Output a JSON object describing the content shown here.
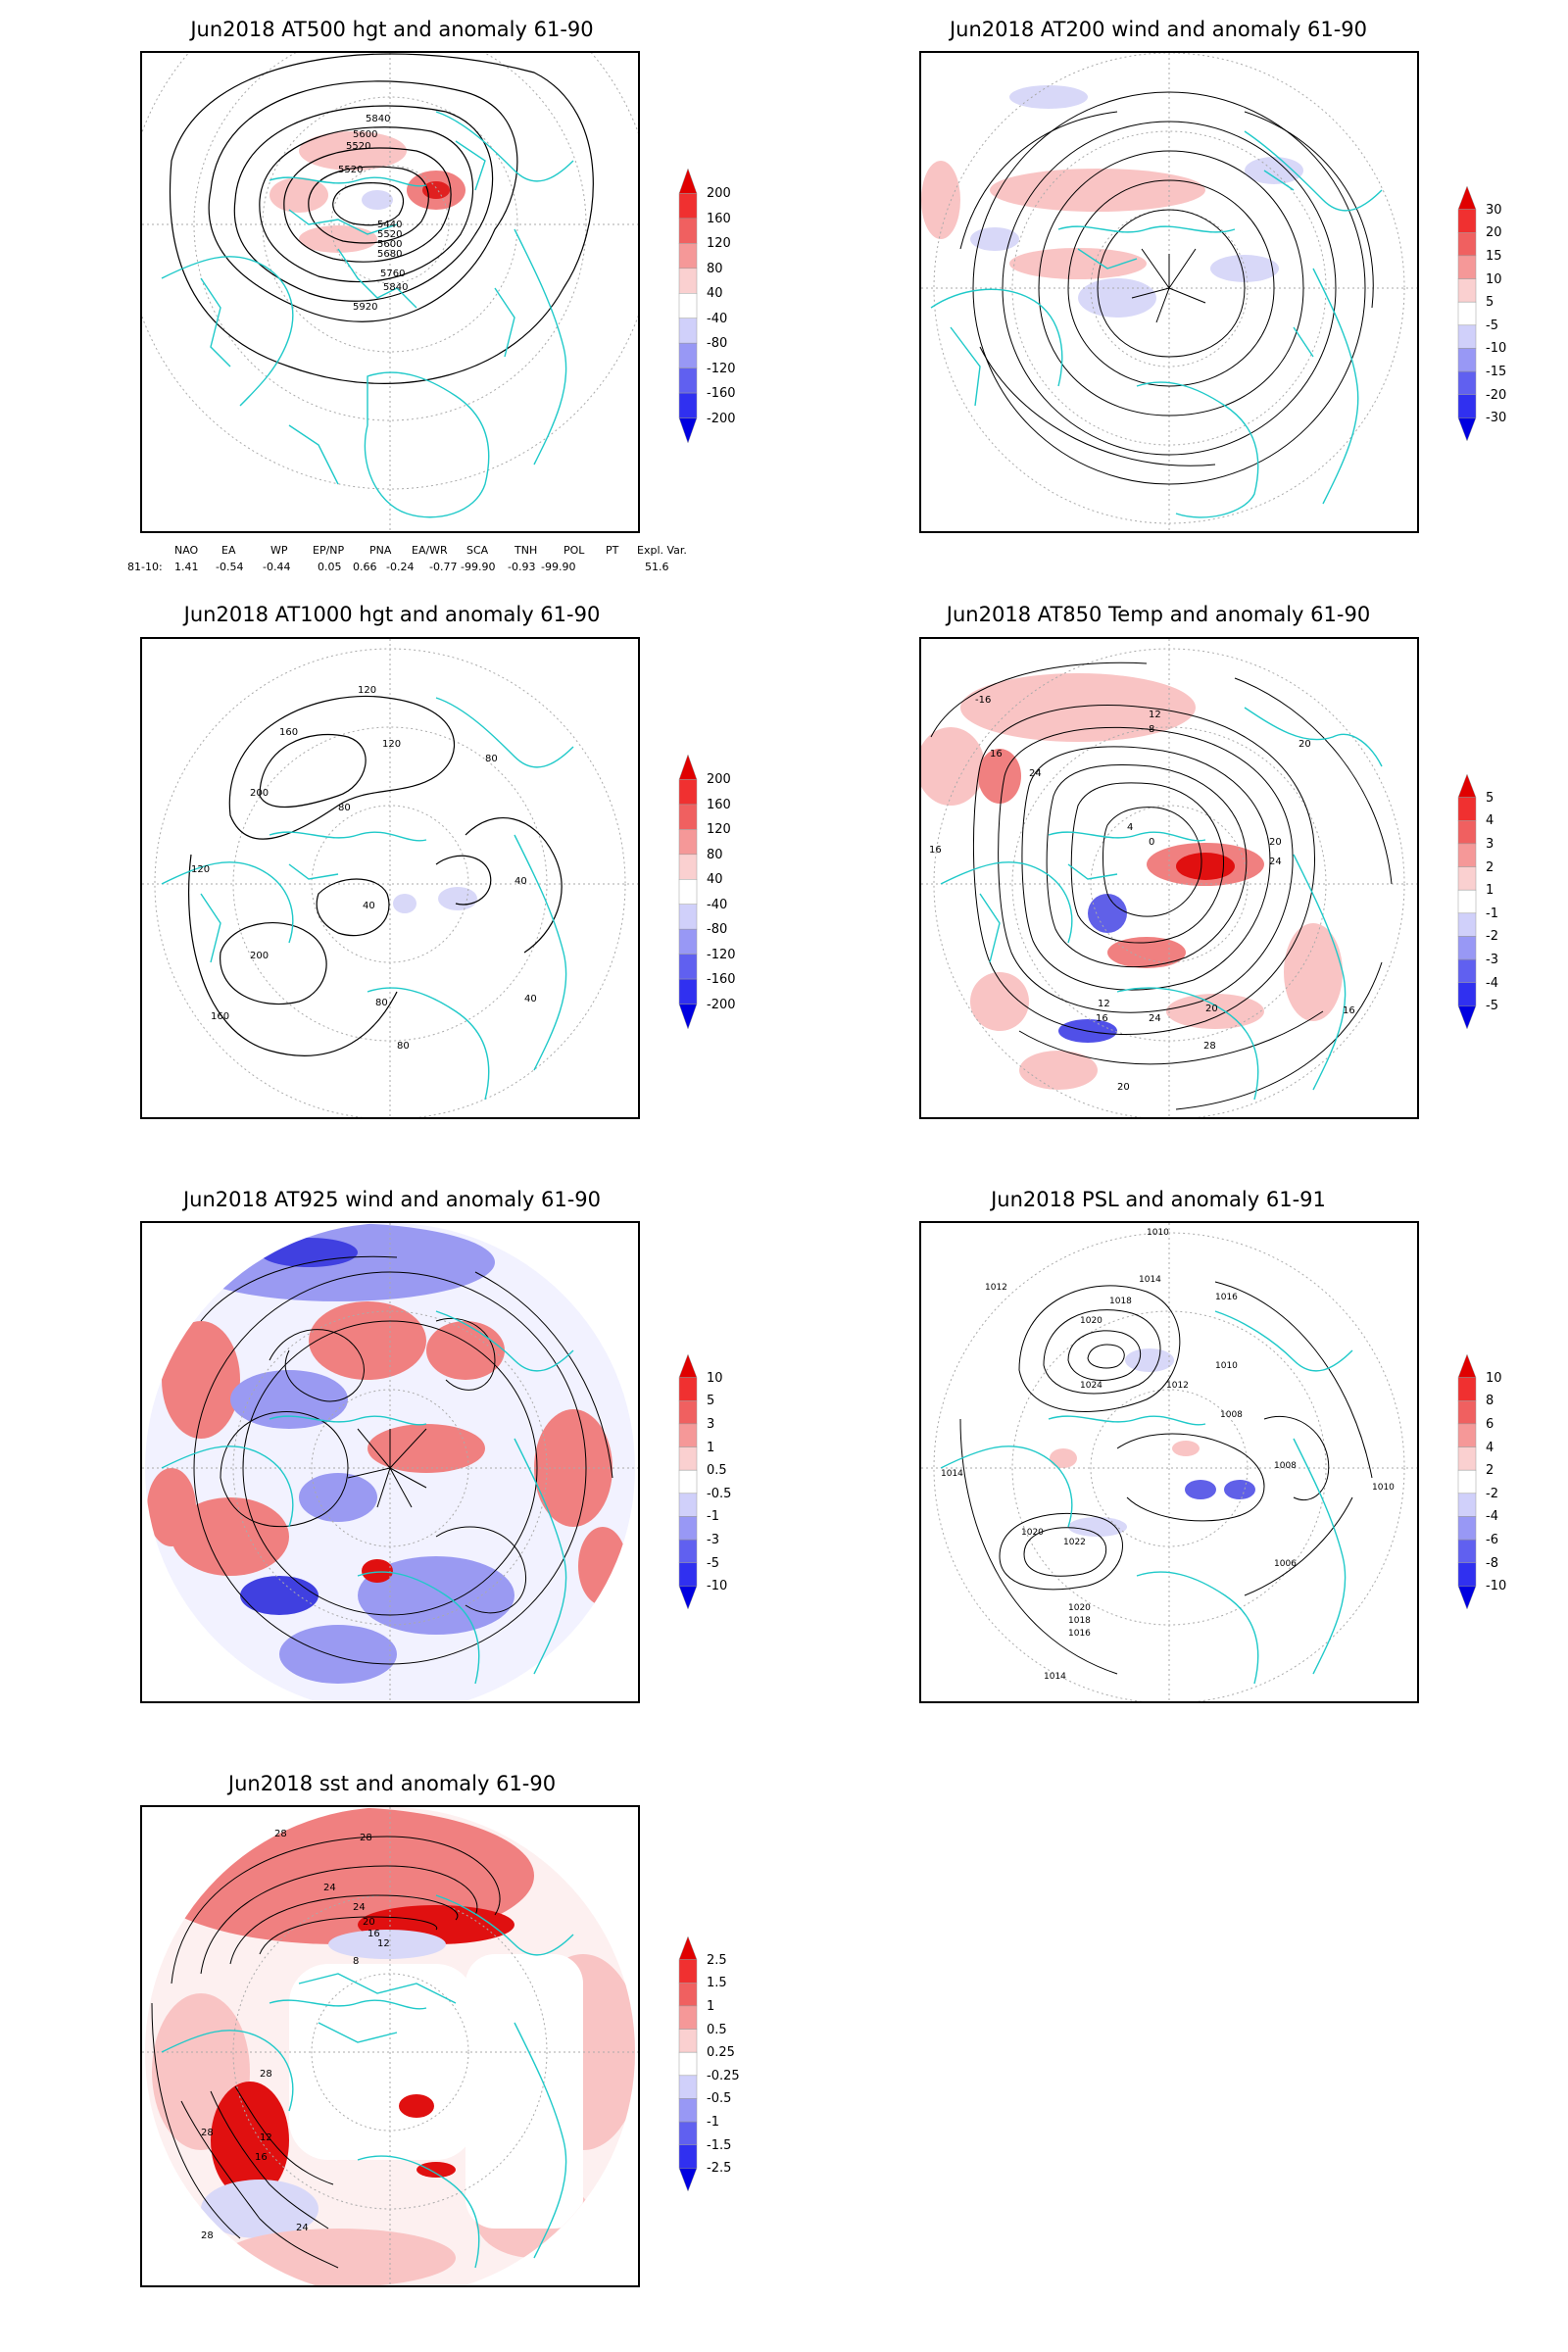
{
  "panels": [
    {
      "id": "p1",
      "title": "Jun2018 AT500 hgt and anomaly 61-90",
      "contour_labels": [
        "5840",
        "5600",
        "5520",
        "5520",
        "5440",
        "5520",
        "5600",
        "5680",
        "5760",
        "5840",
        "5920"
      ],
      "colorbar": [
        "200",
        "160",
        "120",
        "80",
        "40",
        "-40",
        "-80",
        "-120",
        "-160",
        "-200"
      ]
    },
    {
      "id": "p2",
      "title": "Jun2018 AT200 wind and anomaly 61-90",
      "contour_labels": [],
      "colorbar": [
        "30",
        "20",
        "15",
        "10",
        "5",
        "-5",
        "-10",
        "-15",
        "-20",
        "-30"
      ]
    },
    {
      "id": "p3",
      "title": "Jun2018 AT1000 hgt and anomaly 61-90",
      "contour_labels": [
        "120",
        "160",
        "200",
        "120",
        "80",
        "80",
        "40",
        "120",
        "40",
        "200",
        "160",
        "80",
        "40",
        "80"
      ],
      "colorbar": [
        "200",
        "160",
        "120",
        "80",
        "40",
        "-40",
        "-80",
        "-120",
        "-160",
        "-200"
      ]
    },
    {
      "id": "p4",
      "title": "Jun2018 AT850 Temp and anomaly 61-90",
      "contour_labels": [
        "-16",
        "16",
        "12",
        "8",
        "20",
        "24",
        "16",
        "20",
        "24",
        "4",
        "0",
        "12",
        "16",
        "24",
        "20",
        "28",
        "20",
        "16"
      ],
      "colorbar": [
        "5",
        "4",
        "3",
        "2",
        "1",
        "-1",
        "-2",
        "-3",
        "-4",
        "-5"
      ]
    },
    {
      "id": "p5",
      "title": "Jun2018 AT925 wind and anomaly 61-90",
      "contour_labels": [],
      "colorbar": [
        "10",
        "5",
        "3",
        "1",
        "0.5",
        "-0.5",
        "-1",
        "-3",
        "-5",
        "-10"
      ]
    },
    {
      "id": "p6",
      "title": "Jun2018 PSL and anomaly 61-91",
      "contour_labels": [
        "1010",
        "1012",
        "1014",
        "1016",
        "1018",
        "1020",
        "1024",
        "1012",
        "1010",
        "1008",
        "1020",
        "1022",
        "1020",
        "1018",
        "1016",
        "1014",
        "1010",
        "1008",
        "1006",
        "1014"
      ],
      "colorbar": [
        "10",
        "8",
        "6",
        "4",
        "2",
        "-2",
        "-4",
        "-6",
        "-8",
        "-10"
      ]
    },
    {
      "id": "p7",
      "title": "Jun2018 sst and anomaly 61-90",
      "contour_labels": [
        "28",
        "28",
        "24",
        "20",
        "16",
        "12",
        "8",
        "24",
        "28",
        "12",
        "16",
        "28",
        "24",
        "28"
      ],
      "colorbar": [
        "2.5",
        "1.5",
        "1",
        "0.5",
        "0.25",
        "-0.25",
        "-0.5",
        "-1",
        "-1.5",
        "-2.5"
      ]
    }
  ],
  "indices": {
    "headers": [
      "NAO",
      "EA",
      "WP",
      "EP/NP",
      "PNA",
      "EA/WR",
      "SCA",
      "TNH",
      "POL",
      "PT",
      "Expl. Var."
    ],
    "row_label": "81-10:",
    "values": [
      "1.41",
      "-0.54",
      "-0.44",
      "0.05",
      "0.66",
      "-0.24",
      "-0.77",
      "-99.90",
      "-0.93",
      "-99.90",
      "51.6"
    ]
  },
  "colors": {
    "coastline": "#1fc9c9",
    "positive_anomaly": "#f08080",
    "strong_positive": "#e01010",
    "negative_anomaly": "#8080f0",
    "strong_negative": "#1010e0",
    "contour": "#000000",
    "grid": "#999999"
  }
}
